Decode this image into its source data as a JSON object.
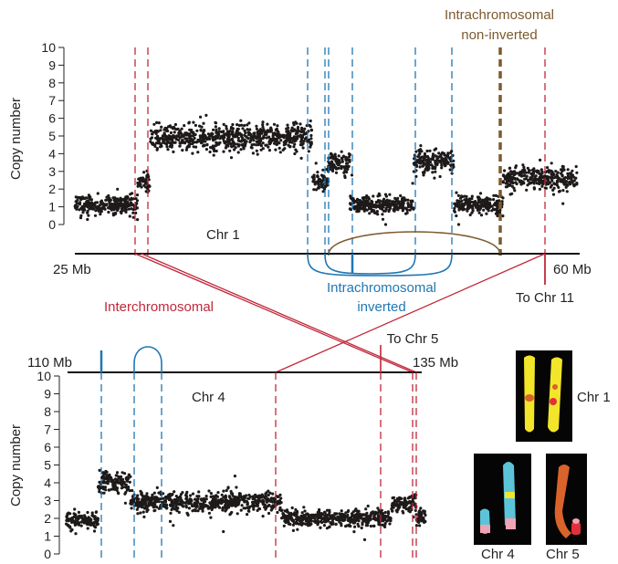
{
  "chart_data": [
    {
      "type": "scatter",
      "chromosome_label": "Chr 1",
      "ylabel": "Copy number",
      "ylim": [
        0,
        10
      ],
      "y_ticks": [
        "0",
        "1",
        "2",
        "3",
        "4",
        "5",
        "6",
        "7",
        "8",
        "9",
        "10"
      ],
      "axis_start_label": "25 Mb",
      "axis_end_label": "60 Mb",
      "segments": [
        {
          "from": 0.0,
          "to": 0.125,
          "copy_number": 1.1
        },
        {
          "from": 0.125,
          "to": 0.15,
          "copy_number": 2.4
        },
        {
          "from": 0.15,
          "to": 0.472,
          "copy_number": 4.9
        },
        {
          "from": 0.472,
          "to": 0.505,
          "copy_number": 2.5
        },
        {
          "from": 0.505,
          "to": 0.548,
          "copy_number": 3.5
        },
        {
          "from": 0.548,
          "to": 0.675,
          "copy_number": 1.1
        },
        {
          "from": 0.675,
          "to": 0.755,
          "copy_number": 3.6
        },
        {
          "from": 0.755,
          "to": 0.853,
          "copy_number": 1.1
        },
        {
          "from": 0.853,
          "to": 1.0,
          "copy_number": 2.6
        }
      ],
      "breakpoint_colors": {
        "inter": "#c0283a",
        "intra_inverted": "#1f77b4",
        "intra_non_inverted": "#7d5a2e"
      }
    },
    {
      "type": "scatter",
      "chromosome_label": "Chr 4",
      "ylabel": "Copy number",
      "ylim": [
        0,
        10
      ],
      "y_ticks": [
        "0",
        "1",
        "2",
        "3",
        "4",
        "5",
        "6",
        "7",
        "8",
        "9",
        "10"
      ],
      "axis_start_label": "110 Mb",
      "axis_end_label": "135 Mb",
      "segments": [
        {
          "from": 0.0,
          "to": 0.09,
          "copy_number": 1.9
        },
        {
          "from": 0.09,
          "to": 0.18,
          "copy_number": 4.0
        },
        {
          "from": 0.18,
          "to": 0.6,
          "copy_number": 2.9
        },
        {
          "from": 0.6,
          "to": 0.905,
          "copy_number": 2.0
        },
        {
          "from": 0.905,
          "to": 0.975,
          "copy_number": 2.8
        },
        {
          "from": 0.975,
          "to": 1.0,
          "copy_number": 2.1
        }
      ]
    }
  ],
  "annotations": {
    "intra_non_inverted_line1": "Intrachromosomal",
    "intra_non_inverted_line2": "non-inverted",
    "intra_inverted_line1": "Intrachromosomal",
    "intra_inverted_line2": "inverted",
    "interchromosomal": "Interchromosomal",
    "to_chr11": "To Chr 11",
    "to_chr5": "To Chr 5"
  },
  "karyotype": {
    "chr1_label": "Chr 1",
    "chr4_label": "Chr 4",
    "chr5_label": "Chr 5",
    "colors": {
      "yellow": "#f2e52a",
      "cyan": "#5cc4d8",
      "pink": "#f0a3b5",
      "orange": "#d9632a",
      "red": "#e0303a",
      "black": "#050505"
    }
  }
}
